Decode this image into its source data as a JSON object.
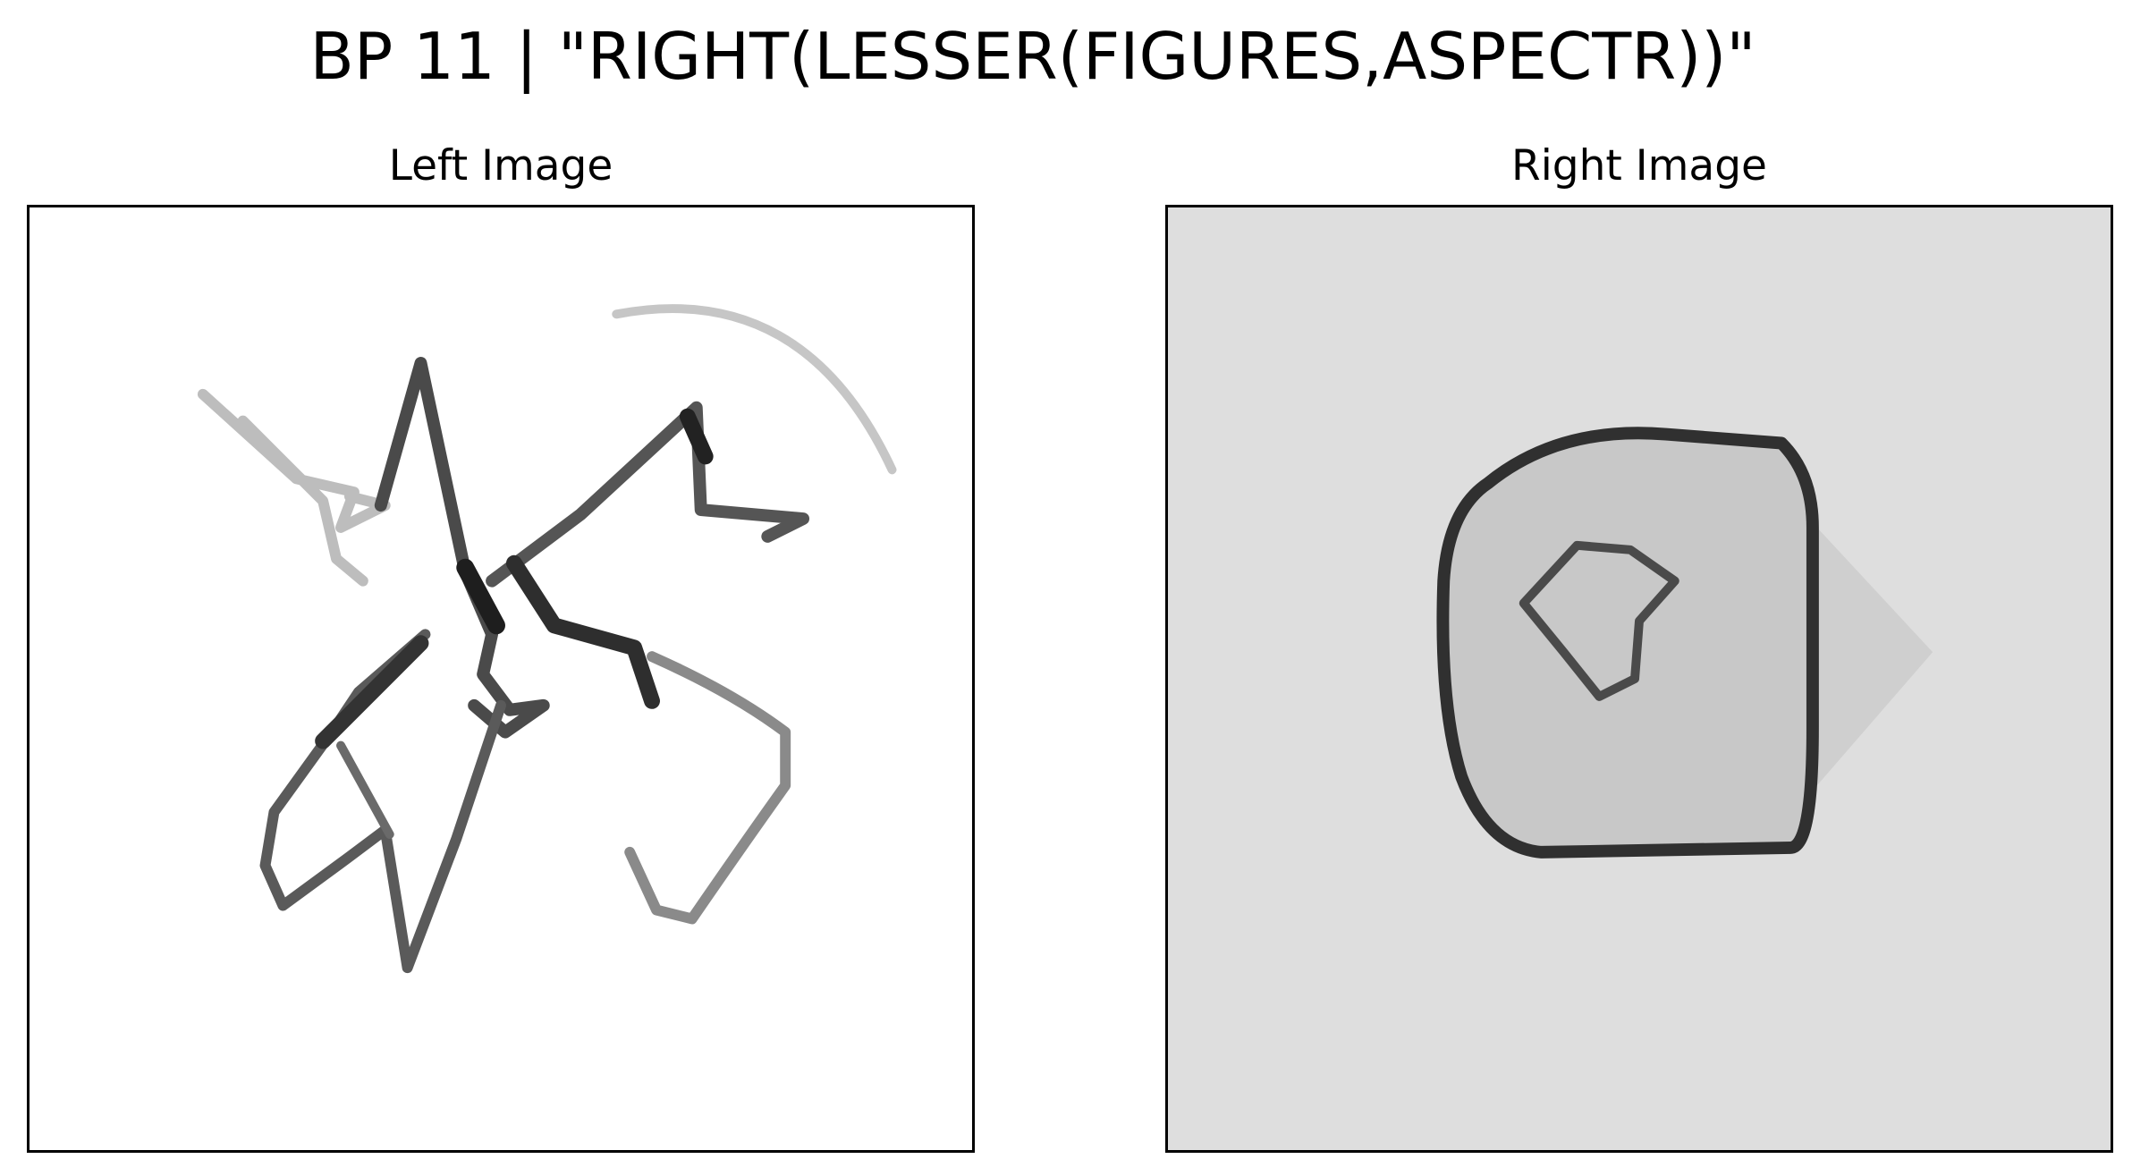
{
  "title": "BP 11 | \"RIGHT(LESSER(FIGURES,ASPECTR))\"",
  "panels": {
    "left": {
      "label": "Left Image",
      "background": "#ffffff"
    },
    "right": {
      "label": "Right Image",
      "background": "#dedede"
    }
  },
  "colors": {
    "stroke_dark": "#2a2a2a",
    "stroke_mid": "#6a6a6a",
    "stroke_light": "#b8b8b8",
    "shape_fill": "#c8c8c8",
    "pale_fill": "#cfcfcf"
  }
}
